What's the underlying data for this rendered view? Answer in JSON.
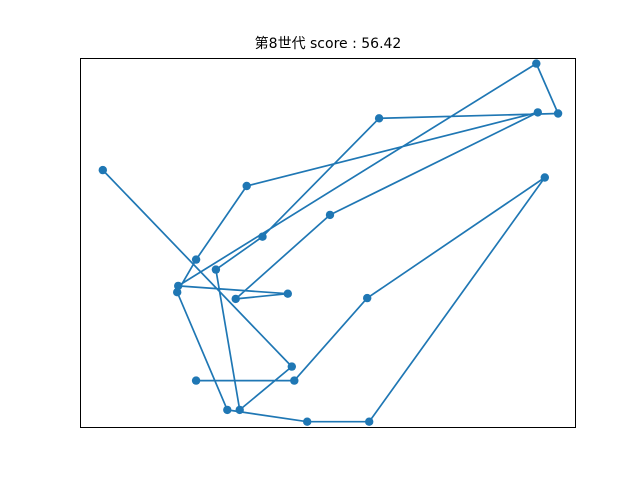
{
  "chart_data": {
    "type": "line",
    "title": "第8世代 score : 56.42",
    "xlabel": "",
    "ylabel": "",
    "xlim": [
      0,
      100
    ],
    "ylim": [
      0,
      100
    ],
    "axes_visible": false,
    "grid": false,
    "marker": "circle",
    "series": [
      {
        "color": "#1f77b4",
        "x": [
          4.6,
          42.7,
          32.2,
          27.4,
          36.8,
          60.3,
          96.4,
          92.0,
          19.8,
          41.9,
          31.4,
          50.4,
          92.3,
          33.6,
          23.4,
          19.6,
          29.7,
          45.8,
          58.3,
          93.7,
          57.9,
          43.2,
          23.4
        ],
        "y": [
          69.7,
          16.6,
          4.9,
          42.8,
          51.7,
          83.7,
          85.0,
          98.5,
          38.4,
          36.3,
          34.9,
          57.6,
          85.3,
          65.4,
          45.5,
          36.7,
          4.9,
          1.7,
          1.7,
          67.7,
          35.1,
          12.8,
          12.8
        ]
      }
    ]
  }
}
